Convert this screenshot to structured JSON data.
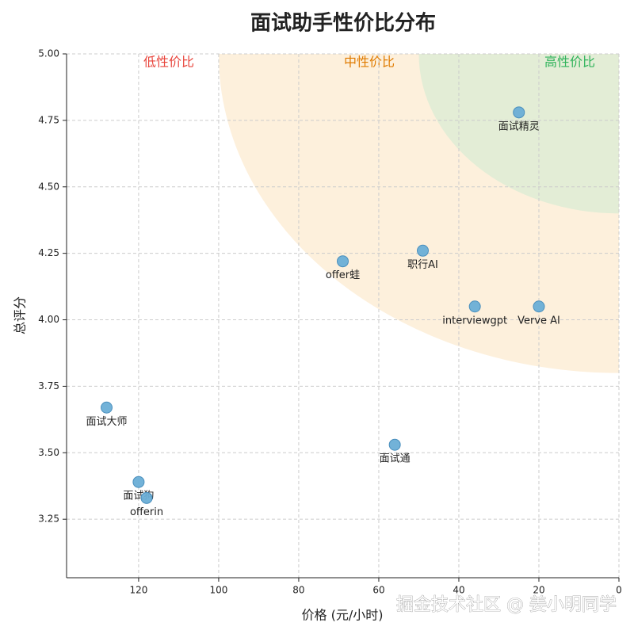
{
  "chart_data": {
    "type": "scatter",
    "title": "面试助手性价比分布",
    "x_label": "价格 (元/小时)",
    "y_label": "总评分",
    "points": [
      {
        "name": "面试精灵",
        "x": 25,
        "y": 4.78
      },
      {
        "name": "职行AI",
        "x": 49,
        "y": 4.26
      },
      {
        "name": "offer蛙",
        "x": 69,
        "y": 4.22
      },
      {
        "name": "interviewgpt",
        "x": 36,
        "y": 4.05
      },
      {
        "name": "Verve AI",
        "x": 20,
        "y": 4.05
      },
      {
        "name": "面试大师",
        "x": 128,
        "y": 3.67
      },
      {
        "name": "面试通",
        "x": 56,
        "y": 3.53
      },
      {
        "name": "面试狗",
        "x": 120,
        "y": 3.39
      },
      {
        "name": "offerin",
        "x": 118,
        "y": 3.33
      }
    ],
    "color": "#6aaed6",
    "zones": [
      {
        "name": "低性价比",
        "color": "#e8453c"
      },
      {
        "name": "中性价比",
        "color": "#e07b00",
        "fill": "#fdf0dc",
        "price": 100,
        "score": 3.8
      },
      {
        "name": "高性价比",
        "color": "#2fb35a",
        "fill": "#e3edd6",
        "price": 50,
        "score": 4.4
      }
    ],
    "xlim": [
      138,
      0
    ],
    "xticks": [
      120,
      100,
      80,
      60,
      40,
      20,
      0
    ],
    "ylim": [
      3.03,
      5.0
    ],
    "yticks": [
      {
        "value": 3.25,
        "label": "3.25"
      },
      {
        "value": 3.5,
        "label": "3.50"
      },
      {
        "value": 3.75,
        "label": "3.75"
      },
      {
        "value": 4.0,
        "label": "4.00"
      },
      {
        "value": 4.25,
        "label": "4.25"
      },
      {
        "value": 4.5,
        "label": "4.50"
      },
      {
        "value": 4.75,
        "label": "4.75"
      },
      {
        "value": 5.0,
        "label": "5.00"
      }
    ],
    "grid": true,
    "watermark": "掘金技术社区 @ 姜小明同学"
  }
}
